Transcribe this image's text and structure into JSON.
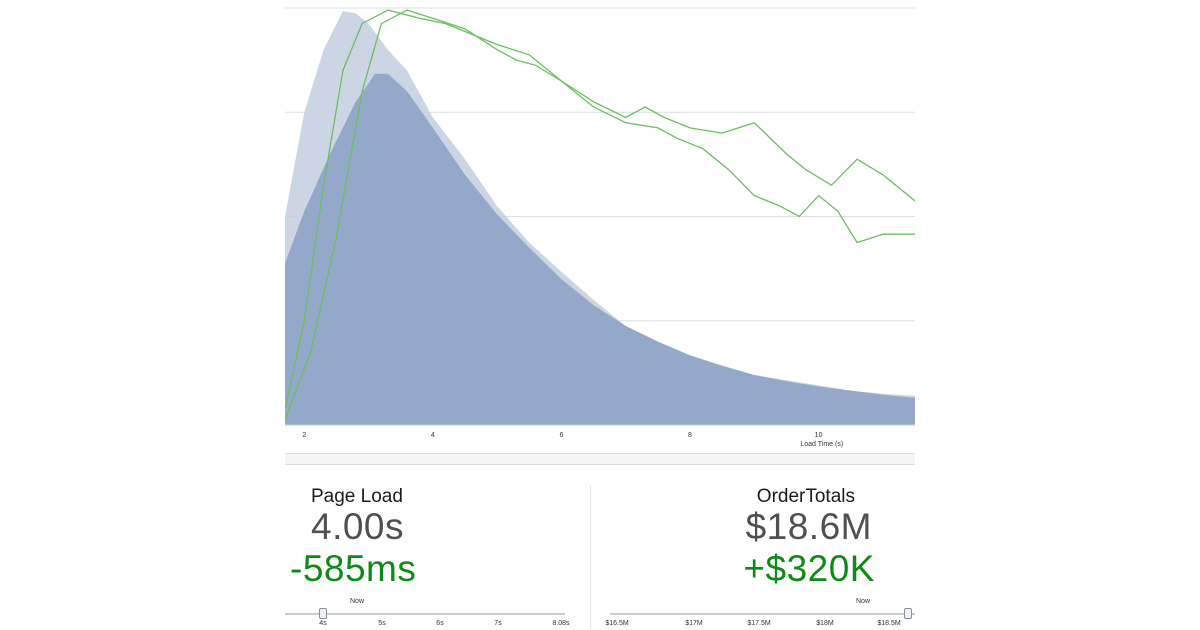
{
  "chart_data": {
    "type": "area",
    "xlabel": "Load Time (s)",
    "xlim": [
      1.7,
      11.5
    ],
    "ylim": [
      0,
      4
    ],
    "x_ticks": [
      {
        "value": 2,
        "label": "2"
      },
      {
        "value": 4,
        "label": "4"
      },
      {
        "value": 6,
        "label": "6"
      },
      {
        "value": 8,
        "label": "8"
      },
      {
        "value": 10,
        "label": "10"
      }
    ],
    "grid": "horizontal",
    "series": [
      {
        "kind": "area",
        "color": "#c3cedf",
        "points": [
          [
            1.7,
            2.0
          ],
          [
            2.0,
            3.0
          ],
          [
            2.3,
            3.6
          ],
          [
            2.6,
            3.97
          ],
          [
            2.8,
            3.95
          ],
          [
            3.0,
            3.85
          ],
          [
            3.3,
            3.6
          ],
          [
            3.6,
            3.4
          ],
          [
            4.0,
            2.95
          ],
          [
            4.5,
            2.55
          ],
          [
            5.0,
            2.1
          ],
          [
            5.5,
            1.75
          ],
          [
            6.0,
            1.47
          ],
          [
            6.5,
            1.2
          ],
          [
            7.0,
            0.95
          ],
          [
            7.5,
            0.8
          ],
          [
            8.0,
            0.66
          ],
          [
            8.5,
            0.56
          ],
          [
            9.0,
            0.48
          ],
          [
            9.5,
            0.43
          ],
          [
            10.0,
            0.38
          ],
          [
            10.5,
            0.33
          ],
          [
            11.0,
            0.3
          ],
          [
            11.5,
            0.28
          ]
        ]
      },
      {
        "kind": "area",
        "color": "#8ea3c6",
        "points": [
          [
            1.7,
            1.55
          ],
          [
            2.0,
            2.05
          ],
          [
            2.4,
            2.6
          ],
          [
            2.8,
            3.1
          ],
          [
            3.1,
            3.37
          ],
          [
            3.3,
            3.37
          ],
          [
            3.6,
            3.2
          ],
          [
            4.0,
            2.85
          ],
          [
            4.5,
            2.4
          ],
          [
            5.0,
            2.02
          ],
          [
            5.5,
            1.7
          ],
          [
            6.0,
            1.4
          ],
          [
            6.5,
            1.15
          ],
          [
            7.0,
            0.95
          ],
          [
            7.5,
            0.8
          ],
          [
            8.0,
            0.67
          ],
          [
            8.5,
            0.57
          ],
          [
            9.0,
            0.48
          ],
          [
            9.5,
            0.42
          ],
          [
            10.0,
            0.37
          ],
          [
            10.5,
            0.33
          ],
          [
            11.0,
            0.29
          ],
          [
            11.5,
            0.26
          ]
        ]
      },
      {
        "kind": "line",
        "color": "#6cbf5f",
        "points": [
          [
            1.7,
            0.15
          ],
          [
            2.0,
            1.0
          ],
          [
            2.3,
            2.3
          ],
          [
            2.6,
            3.4
          ],
          [
            2.9,
            3.85
          ],
          [
            3.3,
            3.98
          ],
          [
            3.8,
            3.9
          ],
          [
            4.2,
            3.85
          ],
          [
            4.6,
            3.75
          ],
          [
            5.0,
            3.65
          ],
          [
            5.5,
            3.55
          ],
          [
            6.0,
            3.3
          ],
          [
            6.5,
            3.05
          ],
          [
            7.0,
            2.9
          ],
          [
            7.5,
            2.85
          ],
          [
            7.8,
            2.75
          ],
          [
            8.2,
            2.65
          ],
          [
            8.6,
            2.45
          ],
          [
            9.0,
            2.2
          ],
          [
            9.4,
            2.1
          ],
          [
            9.7,
            2.0
          ],
          [
            10.0,
            2.2
          ],
          [
            10.3,
            2.05
          ],
          [
            10.6,
            1.75
          ],
          [
            11.0,
            1.83
          ],
          [
            11.5,
            1.83
          ]
        ]
      },
      {
        "kind": "line",
        "color": "#6cbf5f",
        "points": [
          [
            1.7,
            0.05
          ],
          [
            2.1,
            0.7
          ],
          [
            2.5,
            1.8
          ],
          [
            2.9,
            3.2
          ],
          [
            3.2,
            3.85
          ],
          [
            3.6,
            3.98
          ],
          [
            4.0,
            3.9
          ],
          [
            4.5,
            3.8
          ],
          [
            5.0,
            3.6
          ],
          [
            5.3,
            3.5
          ],
          [
            5.6,
            3.45
          ],
          [
            6.0,
            3.3
          ],
          [
            6.5,
            3.1
          ],
          [
            7.0,
            2.95
          ],
          [
            7.3,
            3.05
          ],
          [
            7.6,
            2.95
          ],
          [
            8.0,
            2.85
          ],
          [
            8.5,
            2.8
          ],
          [
            9.0,
            2.9
          ],
          [
            9.5,
            2.6
          ],
          [
            9.8,
            2.45
          ],
          [
            10.2,
            2.3
          ],
          [
            10.6,
            2.55
          ],
          [
            11.0,
            2.4
          ],
          [
            11.5,
            2.15
          ]
        ]
      }
    ]
  },
  "metrics": {
    "left": {
      "title": "Page Load",
      "value": "4.00s",
      "delta": "-585ms"
    },
    "right": {
      "title": "OrderTotals",
      "value": "$18.6M",
      "delta": "+$320K"
    }
  },
  "sliders": {
    "left": {
      "now_label": "Now",
      "ticks": [
        "4s",
        "5s",
        "6s",
        "7s",
        "8.08s"
      ]
    },
    "right": {
      "now_label": "Now",
      "ticks": [
        "$16.5M",
        "$17M",
        "$17.5M",
        "$18M",
        "$18.5M"
      ]
    }
  },
  "colors": {
    "delta_positive": "#0e8a16",
    "area_light": "#c3cedf",
    "area_dark": "#8ea3c6",
    "line": "#6cbf5f"
  }
}
